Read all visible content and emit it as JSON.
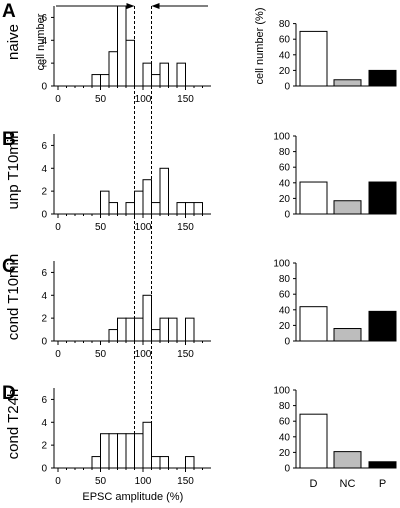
{
  "chart_data": {
    "type": "bar",
    "x_axis_label": "EPSC amplitude (%)",
    "x_ticks": [
      "0",
      "50",
      "100",
      "150"
    ],
    "hist_y_label": "cell number",
    "pct_y_label": "cell number (%)",
    "categories": [
      "D",
      "NC",
      "P"
    ],
    "category_colors": [
      "#ffffff",
      "#bdbdbd",
      "#000000"
    ],
    "dashed_lines_x": [
      90,
      110
    ],
    "arrow_lines": true,
    "rows": [
      {
        "letter": "A",
        "label": "naive",
        "hist_ylim": [
          0,
          7
        ],
        "hist_yticks": [
          "0",
          "2",
          "4",
          "6"
        ],
        "bin_width": 10,
        "bins": [
          {
            "x": 40,
            "count": 1
          },
          {
            "x": 50,
            "count": 1
          },
          {
            "x": 60,
            "count": 3
          },
          {
            "x": 70,
            "count": 7
          },
          {
            "x": 80,
            "count": 4
          },
          {
            "x": 100,
            "count": 2
          },
          {
            "x": 110,
            "count": 1
          },
          {
            "x": 120,
            "count": 2
          },
          {
            "x": 140,
            "count": 2
          }
        ],
        "pct_ylim": [
          0,
          80
        ],
        "pct_yticks": [
          "0",
          "20",
          "40",
          "60",
          "80"
        ],
        "pct_values": [
          70,
          8,
          20
        ]
      },
      {
        "letter": "B",
        "label": "unp T10min",
        "hist_ylim": [
          0,
          7
        ],
        "hist_yticks": [
          "0",
          "2",
          "4",
          "6"
        ],
        "bin_width": 10,
        "bins": [
          {
            "x": 50,
            "count": 2
          },
          {
            "x": 60,
            "count": 1
          },
          {
            "x": 80,
            "count": 1
          },
          {
            "x": 90,
            "count": 2
          },
          {
            "x": 100,
            "count": 3
          },
          {
            "x": 110,
            "count": 1
          },
          {
            "x": 120,
            "count": 4
          },
          {
            "x": 140,
            "count": 1
          },
          {
            "x": 150,
            "count": 1
          },
          {
            "x": 160,
            "count": 1
          }
        ],
        "pct_ylim": [
          0,
          100
        ],
        "pct_yticks": [
          "0",
          "20",
          "40",
          "60",
          "80",
          "100"
        ],
        "pct_values": [
          41,
          17,
          41
        ]
      },
      {
        "letter": "C",
        "label": "cond T10min",
        "hist_ylim": [
          0,
          7
        ],
        "hist_yticks": [
          "0",
          "2",
          "4",
          "6"
        ],
        "bin_width": 10,
        "bins": [
          {
            "x": 60,
            "count": 1
          },
          {
            "x": 70,
            "count": 2
          },
          {
            "x": 80,
            "count": 2
          },
          {
            "x": 90,
            "count": 2
          },
          {
            "x": 100,
            "count": 4
          },
          {
            "x": 110,
            "count": 1
          },
          {
            "x": 120,
            "count": 2
          },
          {
            "x": 130,
            "count": 2
          },
          {
            "x": 150,
            "count": 2
          }
        ],
        "pct_ylim": [
          0,
          100
        ],
        "pct_yticks": [
          "0",
          "20",
          "40",
          "60",
          "80",
          "100"
        ],
        "pct_values": [
          44,
          16,
          38
        ]
      },
      {
        "letter": "D",
        "label": "cond T24h",
        "hist_ylim": [
          0,
          7
        ],
        "hist_yticks": [
          "0",
          "2",
          "4",
          "6"
        ],
        "bin_width": 10,
        "bins": [
          {
            "x": 40,
            "count": 1
          },
          {
            "x": 50,
            "count": 3
          },
          {
            "x": 60,
            "count": 3
          },
          {
            "x": 70,
            "count": 3
          },
          {
            "x": 80,
            "count": 3
          },
          {
            "x": 90,
            "count": 3
          },
          {
            "x": 100,
            "count": 4
          },
          {
            "x": 110,
            "count": 1
          },
          {
            "x": 120,
            "count": 1
          },
          {
            "x": 150,
            "count": 1
          }
        ],
        "pct_ylim": [
          0,
          100
        ],
        "pct_yticks": [
          "0",
          "20",
          "40",
          "60",
          "80",
          "100"
        ],
        "pct_values": [
          69,
          21,
          8
        ]
      }
    ]
  }
}
